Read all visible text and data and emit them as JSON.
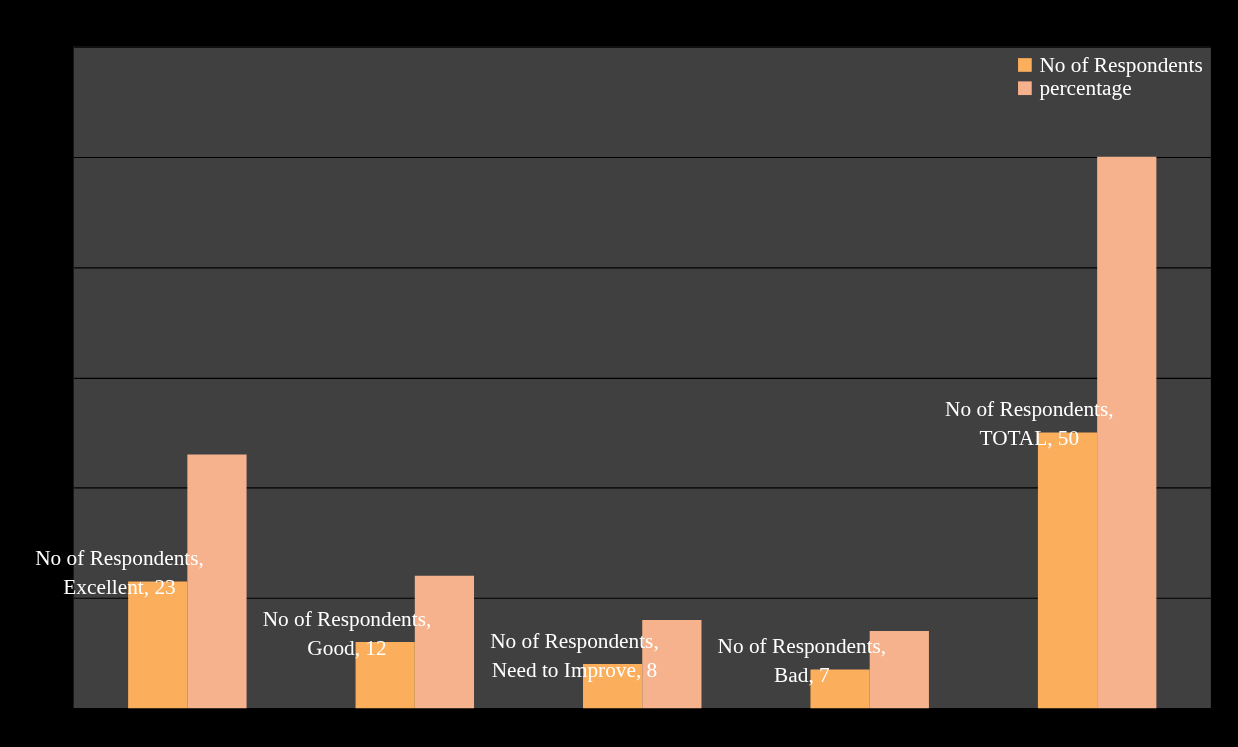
{
  "chart_data": {
    "type": "bar",
    "categories": [
      null,
      null,
      null,
      null,
      null
    ],
    "series": [
      {
        "name": "No of Respondents",
        "color": "#fbae5c",
        "values": [
          23,
          12,
          8,
          7,
          50
        ],
        "value_labels": [
          "No of Respondents, Excellent, 23",
          "No of Respondents, Good, 12",
          "No of Respondents, Need to Improve, 8",
          "No of Respondents, Bad, 7",
          "No of Respondents, TOTAL, 50"
        ]
      },
      {
        "name": "percentage",
        "color": "#f5b28c",
        "values": [
          46,
          24,
          16,
          14,
          100
        ]
      }
    ],
    "ylim": [
      0,
      120
    ],
    "yticks": [
      {
        "value": 0,
        "label": null
      },
      {
        "value": 20,
        "label": null
      },
      {
        "value": 40,
        "label": null
      },
      {
        "value": 60,
        "label": null
      },
      {
        "value": 80,
        "label": null
      },
      {
        "value": 100,
        "label": null
      },
      {
        "value": 120,
        "label": null
      }
    ],
    "tick_labels": false,
    "grid": "y",
    "legend": "top right"
  }
}
